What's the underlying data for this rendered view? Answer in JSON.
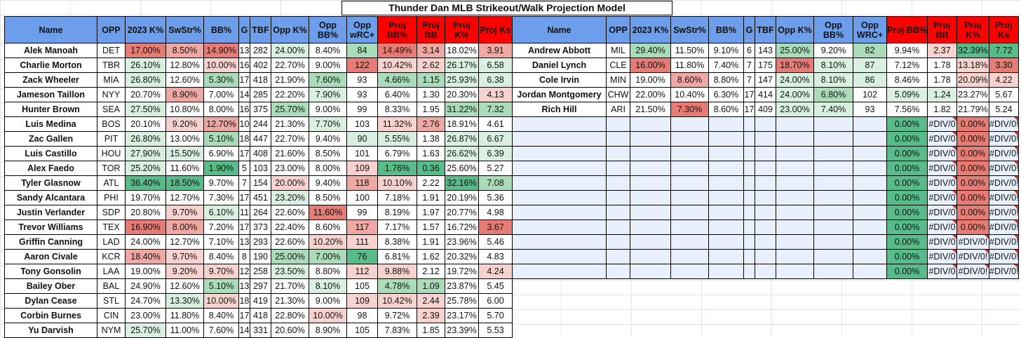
{
  "title": "Thunder Dan MLB Strikeout/Walk Projection Model",
  "headers": [
    {
      "label": "Name",
      "color": "blue"
    },
    {
      "label": "OPP",
      "color": "blue"
    },
    {
      "label": "2023 K%",
      "color": "blue"
    },
    {
      "label": "SwStr%",
      "color": "blue"
    },
    {
      "label": "BB%",
      "color": "blue"
    },
    {
      "label": "G",
      "color": "blue"
    },
    {
      "label": "TBF",
      "color": "blue"
    },
    {
      "label": "Opp K%",
      "color": "blue"
    },
    {
      "label": "Opp BB%",
      "color": "blue"
    },
    {
      "label": "Opp wRC+",
      "color": "blue"
    },
    {
      "label": "Proj BB%",
      "color": "red"
    },
    {
      "label": "Proj BB",
      "color": "red"
    },
    {
      "label": "Proj K%",
      "color": "red"
    },
    {
      "label": "Proj Ks",
      "color": "red"
    }
  ],
  "right_headers": [
    {
      "label": "Name",
      "color": "blue"
    },
    {
      "label": "OPP",
      "color": "blue"
    },
    {
      "label": "2023 K%",
      "color": "blue"
    },
    {
      "label": "SwStr%",
      "color": "blue"
    },
    {
      "label": "BB%",
      "color": "blue"
    },
    {
      "label": "G",
      "color": "blue"
    },
    {
      "label": "TBF",
      "color": "blue"
    },
    {
      "label": "Opp K%",
      "color": "blue"
    },
    {
      "label": "Opp BB%",
      "color": "blue"
    },
    {
      "label": "Opp WRC+",
      "color": "blue"
    },
    {
      "label": "Proj BB%",
      "color": "red"
    },
    {
      "label": "Proj BB",
      "color": "red"
    },
    {
      "label": "Proj K%",
      "color": "red"
    },
    {
      "label": "Proj Ks",
      "color": "red"
    }
  ],
  "left_rows": [
    [
      [
        "Alek Manoah",
        ""
      ],
      [
        "DET",
        ""
      ],
      [
        "17.00%",
        "dr"
      ],
      [
        "8.50%",
        "mr"
      ],
      [
        "14.90%",
        "dr"
      ],
      [
        "13",
        ""
      ],
      [
        "282",
        ""
      ],
      [
        "24.00%",
        "lg"
      ],
      [
        "8.40%",
        ""
      ],
      [
        "84",
        "mg"
      ],
      [
        "14.49%",
        "dr"
      ],
      [
        "3.14",
        "mr"
      ],
      [
        "18.02%",
        ""
      ],
      [
        "3.91",
        "mr"
      ]
    ],
    [
      [
        "Charlie Morton",
        ""
      ],
      [
        "TBR",
        ""
      ],
      [
        "26.10%",
        "lg"
      ],
      [
        "12.80%",
        ""
      ],
      [
        "10.00%",
        "lr"
      ],
      [
        "16",
        ""
      ],
      [
        "402",
        ""
      ],
      [
        "22.70%",
        ""
      ],
      [
        "9.00%",
        ""
      ],
      [
        "122",
        "dr"
      ],
      [
        "10.42%",
        "lr"
      ],
      [
        "2.62",
        "lr"
      ],
      [
        "26.17%",
        "lg"
      ],
      [
        "6.58",
        "lg"
      ]
    ],
    [
      [
        "Zack Wheeler",
        ""
      ],
      [
        "MIA",
        ""
      ],
      [
        "26.80%",
        "lg"
      ],
      [
        "12.60%",
        ""
      ],
      [
        "5.30%",
        "mg"
      ],
      [
        "17",
        ""
      ],
      [
        "418",
        ""
      ],
      [
        "21.90%",
        ""
      ],
      [
        "7.60%",
        "mg"
      ],
      [
        "93",
        ""
      ],
      [
        "4.66%",
        "mg"
      ],
      [
        "1.15",
        "mg"
      ],
      [
        "25.93%",
        "lg"
      ],
      [
        "6.38",
        "lg"
      ]
    ],
    [
      [
        "Jameson Taillon",
        ""
      ],
      [
        "NYY",
        ""
      ],
      [
        "20.70%",
        ""
      ],
      [
        "8.90%",
        "mr"
      ],
      [
        "7.00%",
        ""
      ],
      [
        "14",
        ""
      ],
      [
        "285",
        ""
      ],
      [
        "22.20%",
        ""
      ],
      [
        "7.90%",
        "lg"
      ],
      [
        "93",
        ""
      ],
      [
        "6.40%",
        ""
      ],
      [
        "1.30",
        ""
      ],
      [
        "20.30%",
        ""
      ],
      [
        "4.13",
        "lr"
      ]
    ],
    [
      [
        "Hunter Brown",
        ""
      ],
      [
        "SEA",
        ""
      ],
      [
        "27.50%",
        "lg"
      ],
      [
        "10.80%",
        ""
      ],
      [
        "8.00%",
        ""
      ],
      [
        "16",
        ""
      ],
      [
        "375",
        ""
      ],
      [
        "25.70%",
        "mg"
      ],
      [
        "9.00%",
        ""
      ],
      [
        "99",
        ""
      ],
      [
        "8.33%",
        ""
      ],
      [
        "1.95",
        ""
      ],
      [
        "31.22%",
        "mg"
      ],
      [
        "7.32",
        "mg"
      ]
    ],
    [
      [
        "Luis Medina",
        ""
      ],
      [
        "BOS",
        ""
      ],
      [
        "20.10%",
        ""
      ],
      [
        "9.20%",
        "lr"
      ],
      [
        "12.70%",
        "mr"
      ],
      [
        "10",
        ""
      ],
      [
        "244",
        ""
      ],
      [
        "21.30%",
        ""
      ],
      [
        "7.70%",
        "lg"
      ],
      [
        "103",
        ""
      ],
      [
        "11.32%",
        "lr"
      ],
      [
        "2.76",
        "mr"
      ],
      [
        "18.91%",
        ""
      ],
      [
        "4.61",
        ""
      ]
    ],
    [
      [
        "Zac Gallen",
        ""
      ],
      [
        "PIT",
        ""
      ],
      [
        "26.80%",
        "lg"
      ],
      [
        "13.00%",
        ""
      ],
      [
        "5.10%",
        "mg"
      ],
      [
        "18",
        ""
      ],
      [
        "447",
        ""
      ],
      [
        "22.70%",
        ""
      ],
      [
        "9.40%",
        ""
      ],
      [
        "90",
        "lg"
      ],
      [
        "5.55%",
        "lg"
      ],
      [
        "1.38",
        ""
      ],
      [
        "26.87%",
        "lg"
      ],
      [
        "6.67",
        "lg"
      ]
    ],
    [
      [
        "Luis Castillo",
        ""
      ],
      [
        "HOU",
        ""
      ],
      [
        "27.90%",
        "lg"
      ],
      [
        "15.50%",
        "lg"
      ],
      [
        "6.90%",
        ""
      ],
      [
        "17",
        ""
      ],
      [
        "408",
        ""
      ],
      [
        "21.60%",
        ""
      ],
      [
        "8.50%",
        ""
      ],
      [
        "101",
        ""
      ],
      [
        "6.79%",
        ""
      ],
      [
        "1.63",
        ""
      ],
      [
        "26.62%",
        "lg"
      ],
      [
        "6.39",
        "lg"
      ]
    ],
    [
      [
        "Alex Faedo",
        ""
      ],
      [
        "TOR",
        ""
      ],
      [
        "25.20%",
        "lg"
      ],
      [
        "11.60%",
        ""
      ],
      [
        "1.90%",
        "dg"
      ],
      [
        "5",
        ""
      ],
      [
        "103",
        ""
      ],
      [
        "23.00%",
        ""
      ],
      [
        "8.00%",
        ""
      ],
      [
        "109",
        "lr"
      ],
      [
        "1.76%",
        "dg"
      ],
      [
        "0.36",
        "dg"
      ],
      [
        "25.60%",
        ""
      ],
      [
        "5.27",
        ""
      ]
    ],
    [
      [
        "Tyler Glasnow",
        ""
      ],
      [
        "ATL",
        ""
      ],
      [
        "36.40%",
        "dg"
      ],
      [
        "18.50%",
        "dg"
      ],
      [
        "9.70%",
        ""
      ],
      [
        "7",
        ""
      ],
      [
        "154",
        ""
      ],
      [
        "20.00%",
        "lr"
      ],
      [
        "9.40%",
        ""
      ],
      [
        "118",
        "mr"
      ],
      [
        "10.10%",
        "lr"
      ],
      [
        "2.22",
        ""
      ],
      [
        "32.16%",
        "dg"
      ],
      [
        "7.08",
        "mg"
      ]
    ],
    [
      [
        "Sandy Alcantara",
        ""
      ],
      [
        "PHI",
        ""
      ],
      [
        "19.70%",
        ""
      ],
      [
        "12.70%",
        ""
      ],
      [
        "7.30%",
        ""
      ],
      [
        "17",
        ""
      ],
      [
        "451",
        ""
      ],
      [
        "23.20%",
        "lg"
      ],
      [
        "8.50%",
        ""
      ],
      [
        "100",
        ""
      ],
      [
        "7.18%",
        ""
      ],
      [
        "1.91",
        ""
      ],
      [
        "20.19%",
        ""
      ],
      [
        "5.36",
        ""
      ]
    ],
    [
      [
        "Justin Verlander",
        ""
      ],
      [
        "SDP",
        ""
      ],
      [
        "20.80%",
        ""
      ],
      [
        "9.70%",
        "lr"
      ],
      [
        "6.10%",
        "lg"
      ],
      [
        "11",
        ""
      ],
      [
        "264",
        ""
      ],
      [
        "22.60%",
        ""
      ],
      [
        "11.60%",
        "dr"
      ],
      [
        "99",
        ""
      ],
      [
        "8.19%",
        ""
      ],
      [
        "1.97",
        ""
      ],
      [
        "20.77%",
        ""
      ],
      [
        "4.98",
        ""
      ]
    ],
    [
      [
        "Trevor Williams",
        ""
      ],
      [
        "TEX",
        ""
      ],
      [
        "16.90%",
        "dr"
      ],
      [
        "8.00%",
        "mr"
      ],
      [
        "7.20%",
        ""
      ],
      [
        "17",
        ""
      ],
      [
        "373",
        ""
      ],
      [
        "22.40%",
        ""
      ],
      [
        "8.60%",
        ""
      ],
      [
        "117",
        "mr"
      ],
      [
        "7.17%",
        ""
      ],
      [
        "1.57",
        ""
      ],
      [
        "16.72%",
        ""
      ],
      [
        "3.67",
        "dr"
      ]
    ],
    [
      [
        "Griffin Canning",
        ""
      ],
      [
        "LAD",
        ""
      ],
      [
        "24.00%",
        ""
      ],
      [
        "12.70%",
        ""
      ],
      [
        "7.10%",
        ""
      ],
      [
        "13",
        ""
      ],
      [
        "293",
        ""
      ],
      [
        "22.60%",
        ""
      ],
      [
        "10.20%",
        "lr"
      ],
      [
        "111",
        "lr"
      ],
      [
        "8.38%",
        ""
      ],
      [
        "1.91",
        ""
      ],
      [
        "23.96%",
        ""
      ],
      [
        "5.46",
        ""
      ]
    ],
    [
      [
        "Aaron Civale",
        ""
      ],
      [
        "KCR",
        ""
      ],
      [
        "18.40%",
        "mr"
      ],
      [
        "9.70%",
        "lr"
      ],
      [
        "8.40%",
        ""
      ],
      [
        "8",
        ""
      ],
      [
        "190",
        ""
      ],
      [
        "25.00%",
        "mg"
      ],
      [
        "7.00%",
        "mg"
      ],
      [
        "76",
        "dg"
      ],
      [
        "6.81%",
        ""
      ],
      [
        "1.62",
        ""
      ],
      [
        "20.32%",
        ""
      ],
      [
        "4.83",
        ""
      ]
    ],
    [
      [
        "Tony Gonsolin",
        ""
      ],
      [
        "LAA",
        ""
      ],
      [
        "19.00%",
        ""
      ],
      [
        "9.20%",
        "lr"
      ],
      [
        "9.70%",
        "lr"
      ],
      [
        "12",
        ""
      ],
      [
        "258",
        ""
      ],
      [
        "23.50%",
        "lg"
      ],
      [
        "8.80%",
        ""
      ],
      [
        "112",
        "lr"
      ],
      [
        "9.88%",
        "lr"
      ],
      [
        "2.12",
        ""
      ],
      [
        "19.72%",
        ""
      ],
      [
        "4.24",
        "lr"
      ]
    ],
    [
      [
        "Bailey Ober",
        ""
      ],
      [
        "BAL",
        ""
      ],
      [
        "24.90%",
        ""
      ],
      [
        "12.60%",
        ""
      ],
      [
        "5.10%",
        "mg"
      ],
      [
        "13",
        ""
      ],
      [
        "297",
        ""
      ],
      [
        "21.70%",
        ""
      ],
      [
        "8.10%",
        "lg"
      ],
      [
        "105",
        ""
      ],
      [
        "4.78%",
        "mg"
      ],
      [
        "1.09",
        "mg"
      ],
      [
        "23.87%",
        ""
      ],
      [
        "5.45",
        ""
      ]
    ],
    [
      [
        "Dylan Cease",
        ""
      ],
      [
        "STL",
        ""
      ],
      [
        "24.70%",
        ""
      ],
      [
        "13.30%",
        "lg"
      ],
      [
        "10.00%",
        "lr"
      ],
      [
        "18",
        ""
      ],
      [
        "419",
        ""
      ],
      [
        "21.30%",
        ""
      ],
      [
        "9.00%",
        ""
      ],
      [
        "109",
        "lr"
      ],
      [
        "10.42%",
        "lr"
      ],
      [
        "2.44",
        "lr"
      ],
      [
        "25.78%",
        ""
      ],
      [
        "6.00",
        ""
      ]
    ],
    [
      [
        "Corbin Burnes",
        ""
      ],
      [
        "CIN",
        ""
      ],
      [
        "23.00%",
        ""
      ],
      [
        "11.80%",
        ""
      ],
      [
        "8.40%",
        ""
      ],
      [
        "17",
        ""
      ],
      [
        "418",
        ""
      ],
      [
        "22.80%",
        ""
      ],
      [
        "10.00%",
        "lr"
      ],
      [
        "98",
        ""
      ],
      [
        "9.72%",
        ""
      ],
      [
        "2.39",
        "lr"
      ],
      [
        "23.17%",
        ""
      ],
      [
        "5.70",
        ""
      ]
    ],
    [
      [
        "Yu Darvish",
        ""
      ],
      [
        "NYM",
        ""
      ],
      [
        "25.70%",
        "lg"
      ],
      [
        "11.00%",
        ""
      ],
      [
        "7.60%",
        ""
      ],
      [
        "14",
        ""
      ],
      [
        "331",
        ""
      ],
      [
        "20.60%",
        ""
      ],
      [
        "8.90%",
        ""
      ],
      [
        "105",
        ""
      ],
      [
        "7.83%",
        ""
      ],
      [
        "1.85",
        ""
      ],
      [
        "23.39%",
        ""
      ],
      [
        "5.53",
        ""
      ]
    ]
  ],
  "right_rows": [
    [
      [
        "Andrew Abbott",
        ""
      ],
      [
        "MIL",
        ""
      ],
      [
        "29.40%",
        "mg"
      ],
      [
        "11.50%",
        ""
      ],
      [
        "9.10%",
        ""
      ],
      [
        "6",
        ""
      ],
      [
        "143",
        ""
      ],
      [
        "25.00%",
        "mg"
      ],
      [
        "9.20%",
        ""
      ],
      [
        "82",
        "mg"
      ],
      [
        "9.94%",
        ""
      ],
      [
        "2.37",
        "lr"
      ],
      [
        "32.39%",
        "dg"
      ],
      [
        "7.72",
        "dg"
      ]
    ],
    [
      [
        "Daniel Lynch",
        ""
      ],
      [
        "CLE",
        ""
      ],
      [
        "16.00%",
        "dr"
      ],
      [
        "11.80%",
        ""
      ],
      [
        "7.40%",
        ""
      ],
      [
        "7",
        ""
      ],
      [
        "175",
        ""
      ],
      [
        "18.70%",
        "dr"
      ],
      [
        "8.10%",
        "lg"
      ],
      [
        "87",
        "lg"
      ],
      [
        "7.12%",
        ""
      ],
      [
        "1.78",
        ""
      ],
      [
        "13.18%",
        "lr"
      ],
      [
        "3.30",
        "dr"
      ]
    ],
    [
      [
        "Cole Irvin",
        ""
      ],
      [
        "MIN",
        ""
      ],
      [
        "19.00%",
        ""
      ],
      [
        "8.60%",
        "mr"
      ],
      [
        "8.80%",
        ""
      ],
      [
        "7",
        ""
      ],
      [
        "147",
        ""
      ],
      [
        "24.00%",
        "lg"
      ],
      [
        "8.10%",
        "lg"
      ],
      [
        "86",
        "lg"
      ],
      [
        "8.46%",
        ""
      ],
      [
        "1.78",
        ""
      ],
      [
        "20.09%",
        "lr"
      ],
      [
        "4.22",
        "lr"
      ]
    ],
    [
      [
        "Jordan Montgomery",
        ""
      ],
      [
        "CHW",
        ""
      ],
      [
        "22.00%",
        ""
      ],
      [
        "10.40%",
        ""
      ],
      [
        "6.30%",
        ""
      ],
      [
        "17",
        ""
      ],
      [
        "414",
        ""
      ],
      [
        "24.00%",
        "lg"
      ],
      [
        "6.80%",
        "mg"
      ],
      [
        "102",
        ""
      ],
      [
        "5.09%",
        "lg"
      ],
      [
        "1.24",
        "lg"
      ],
      [
        "23.27%",
        ""
      ],
      [
        "5.67",
        ""
      ]
    ],
    [
      [
        "Rich Hill",
        ""
      ],
      [
        "ARI",
        ""
      ],
      [
        "21.50%",
        ""
      ],
      [
        "7.30%",
        "dr"
      ],
      [
        "8.60%",
        ""
      ],
      [
        "17",
        ""
      ],
      [
        "409",
        ""
      ],
      [
        "23.00%",
        "lg"
      ],
      [
        "7.40%",
        "lg"
      ],
      [
        "93",
        ""
      ],
      [
        "7.56%",
        ""
      ],
      [
        "1.82",
        ""
      ],
      [
        "21.79%",
        ""
      ],
      [
        "5.24",
        ""
      ]
    ]
  ],
  "right_empty_rows": [
    [
      "0.00%",
      "#DIV/0",
      "0.00%",
      "#DIV/0!"
    ],
    [
      "0.00%",
      "#DIV/0",
      "0.00%",
      "#DIV/0!"
    ],
    [
      "0.00%",
      "#DIV/0",
      "0.00%",
      "#DIV/0!"
    ],
    [
      "0.00%",
      "#DIV/0",
      "0.00%",
      "#DIV/0!"
    ],
    [
      "0.00%",
      "#DIV/0",
      "0.00%",
      "#DIV/0!"
    ],
    [
      "0.00%",
      "#DIV/0",
      "0.00%",
      "#DIV/0!"
    ],
    [
      "0.00%",
      "#DIV/0",
      "0.00%",
      "#DIV/0!"
    ],
    [
      "0.00%",
      "#DIV/0",
      "0.00%",
      "#DIV/0!"
    ],
    [
      "0.00%",
      "#DIV/0",
      "#DIV/0!",
      "#DIV/0!"
    ],
    [
      "0.00%",
      "#DIV/0",
      "#DIV/0!",
      "#DIV/0!"
    ],
    [
      "0.00%",
      "#DIV/0",
      "#DIV/0!",
      "#DIV/0!"
    ]
  ],
  "colors": {
    "header_blue": "#6d9eeb",
    "header_red": "#ff0000",
    "green_dark": "#57bb8a",
    "red_dark": "#e67c73",
    "blank_row": "#e8f0fe"
  }
}
